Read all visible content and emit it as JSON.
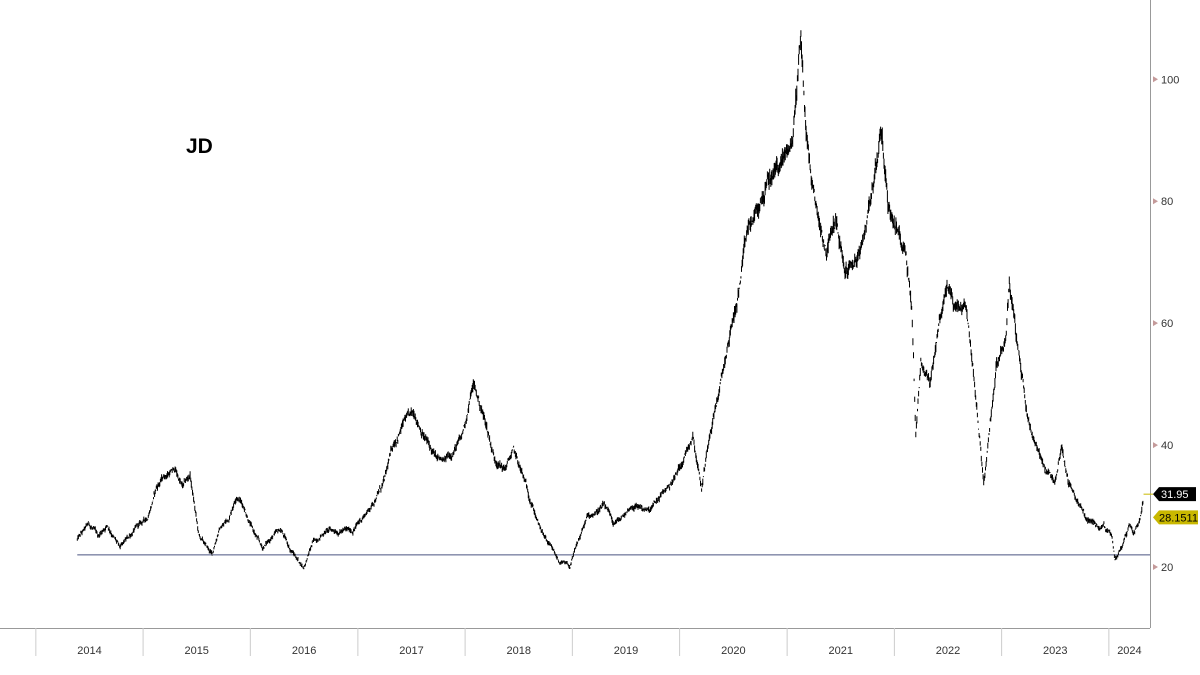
{
  "chart_data": {
    "type": "line",
    "title": "JD",
    "xlabel": "",
    "ylabel": "",
    "x_tick_labels": [
      "2014",
      "2015",
      "2016",
      "2017",
      "2018",
      "2019",
      "2020",
      "2021",
      "2022",
      "2023",
      "2024"
    ],
    "y_ticks": [
      20,
      40,
      60,
      80,
      100
    ],
    "ylim": [
      10,
      113
    ],
    "xlim": [
      "2013-09-01",
      "2024-05-20"
    ],
    "grid": false,
    "legend": "none",
    "support_level": 22.0,
    "support_start": "2014-05-22",
    "last_price_label": "31.95",
    "last_price": 31.95,
    "secondary_label": "28.1511",
    "secondary_value": 28.1511,
    "colors": {
      "price": "#000000",
      "support": "#4a5580",
      "last_tag": "#000000",
      "secondary_tag": "#c9b800",
      "axis": "#999999"
    },
    "series": [
      {
        "points": [
          [
            "2014-05-22",
            24.5
          ],
          [
            "2014-07-01",
            27
          ],
          [
            "2014-08-01",
            25
          ],
          [
            "2014-09-01",
            27
          ],
          [
            "2014-10-15",
            23
          ],
          [
            "2014-12-01",
            26
          ],
          [
            "2015-01-15",
            28
          ],
          [
            "2015-02-15",
            33
          ],
          [
            "2015-03-15",
            35
          ],
          [
            "2015-04-20",
            36
          ],
          [
            "2015-05-15",
            33
          ],
          [
            "2015-06-10",
            35
          ],
          [
            "2015-07-10",
            25
          ],
          [
            "2015-08-24",
            22
          ],
          [
            "2015-09-15",
            26
          ],
          [
            "2015-10-20",
            28
          ],
          [
            "2015-11-15",
            32
          ],
          [
            "2015-12-10",
            30
          ],
          [
            "2016-01-10",
            26
          ],
          [
            "2016-02-11",
            23
          ],
          [
            "2016-03-15",
            25
          ],
          [
            "2016-04-15",
            26
          ],
          [
            "2016-05-15",
            23
          ],
          [
            "2016-06-15",
            21
          ],
          [
            "2016-07-01",
            20
          ],
          [
            "2016-08-01",
            24
          ],
          [
            "2016-09-15",
            26
          ],
          [
            "2016-11-01",
            26
          ],
          [
            "2016-12-15",
            26
          ],
          [
            "2017-02-15",
            30
          ],
          [
            "2017-04-01",
            34
          ],
          [
            "2017-05-01",
            40
          ],
          [
            "2017-06-10",
            44
          ],
          [
            "2017-07-15",
            45
          ],
          [
            "2017-08-20",
            41
          ],
          [
            "2017-09-20",
            38
          ],
          [
            "2017-10-20",
            37
          ],
          [
            "2017-11-20",
            39
          ],
          [
            "2017-12-20",
            41
          ],
          [
            "2018-01-29",
            50
          ],
          [
            "2018-03-10",
            44
          ],
          [
            "2018-04-10",
            38
          ],
          [
            "2018-05-15",
            36
          ],
          [
            "2018-06-15",
            39
          ],
          [
            "2018-07-15",
            35
          ],
          [
            "2018-08-20",
            30
          ],
          [
            "2018-09-15",
            26
          ],
          [
            "2018-10-20",
            23
          ],
          [
            "2018-11-15",
            21
          ],
          [
            "2018-12-24",
            20
          ],
          [
            "2019-01-20",
            24
          ],
          [
            "2019-02-20",
            28
          ],
          [
            "2019-03-20",
            29
          ],
          [
            "2019-04-20",
            30
          ],
          [
            "2019-05-20",
            27
          ],
          [
            "2019-06-20",
            28
          ],
          [
            "2019-07-20",
            30
          ],
          [
            "2019-08-20",
            30
          ],
          [
            "2019-09-20",
            29
          ],
          [
            "2019-10-20",
            31
          ],
          [
            "2019-11-20",
            33
          ],
          [
            "2019-12-20",
            35
          ],
          [
            "2020-01-15",
            38
          ],
          [
            "2020-02-15",
            42
          ],
          [
            "2020-03-16",
            33
          ],
          [
            "2020-04-15",
            43
          ],
          [
            "2020-05-20",
            50
          ],
          [
            "2020-06-20",
            58
          ],
          [
            "2020-07-20",
            65
          ],
          [
            "2020-08-20",
            75
          ],
          [
            "2020-09-20",
            78
          ],
          [
            "2020-10-20",
            82
          ],
          [
            "2020-11-20",
            85
          ],
          [
            "2020-12-20",
            87
          ],
          [
            "2021-01-20",
            90
          ],
          [
            "2021-02-17",
            108
          ],
          [
            "2021-03-01",
            95
          ],
          [
            "2021-03-20",
            85
          ],
          [
            "2021-04-15",
            78
          ],
          [
            "2021-05-15",
            72
          ],
          [
            "2021-06-15",
            77
          ],
          [
            "2021-07-15",
            68
          ],
          [
            "2021-08-15",
            70
          ],
          [
            "2021-09-15",
            72
          ],
          [
            "2021-10-15",
            82
          ],
          [
            "2021-11-01",
            86
          ],
          [
            "2021-11-17",
            92
          ],
          [
            "2021-12-10",
            80
          ],
          [
            "2022-01-10",
            75
          ],
          [
            "2022-02-10",
            72
          ],
          [
            "2022-03-01",
            63
          ],
          [
            "2022-03-15",
            42
          ],
          [
            "2022-04-01",
            54
          ],
          [
            "2022-05-01",
            50
          ],
          [
            "2022-06-01",
            60
          ],
          [
            "2022-07-01",
            66
          ],
          [
            "2022-08-01",
            62
          ],
          [
            "2022-09-01",
            62
          ],
          [
            "2022-10-01",
            50
          ],
          [
            "2022-10-24",
            38
          ],
          [
            "2022-11-01",
            34
          ],
          [
            "2022-11-15",
            40
          ],
          [
            "2022-12-15",
            54
          ],
          [
            "2023-01-15",
            58
          ],
          [
            "2023-01-27",
            67
          ],
          [
            "2023-02-15",
            60
          ],
          [
            "2023-03-01",
            54
          ],
          [
            "2023-03-15",
            50
          ],
          [
            "2023-04-01",
            44
          ],
          [
            "2023-05-01",
            40
          ],
          [
            "2023-06-01",
            36
          ],
          [
            "2023-07-01",
            34
          ],
          [
            "2023-07-25",
            40
          ],
          [
            "2023-08-15",
            34
          ],
          [
            "2023-09-15",
            31
          ],
          [
            "2023-10-15",
            28
          ],
          [
            "2023-11-15",
            27
          ],
          [
            "2023-12-15",
            27
          ],
          [
            "2024-01-10",
            25
          ],
          [
            "2024-01-22",
            21
          ],
          [
            "2024-02-10",
            23
          ],
          [
            "2024-02-25",
            25
          ],
          [
            "2024-03-10",
            27
          ],
          [
            "2024-03-25",
            26
          ],
          [
            "2024-04-10",
            27
          ],
          [
            "2024-04-28",
            31.95
          ]
        ]
      }
    ]
  }
}
